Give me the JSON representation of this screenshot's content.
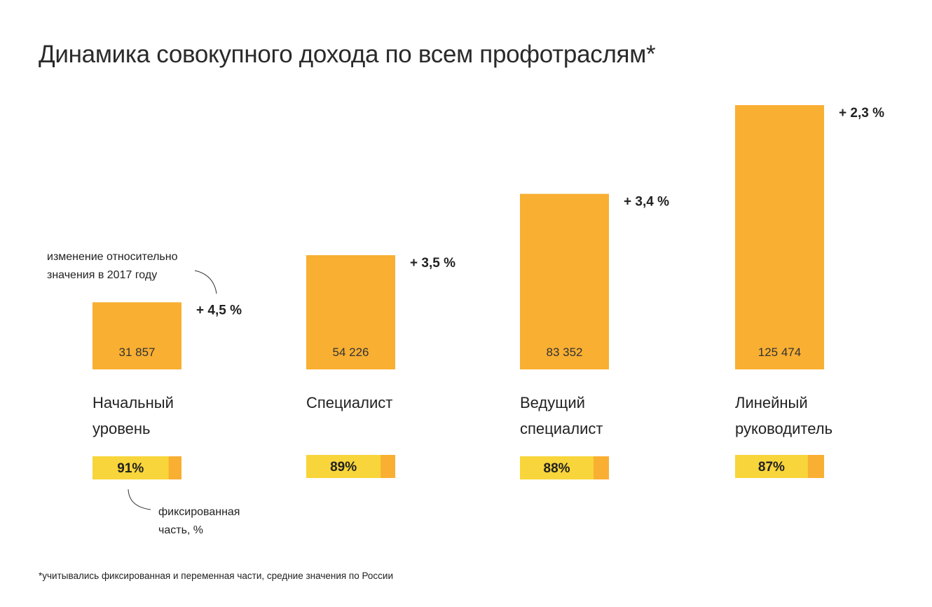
{
  "chart_data": {
    "type": "bar",
    "title": "Динамика совокупного дохода по всем профотраслям*",
    "categories": [
      "Начальный уровень",
      "Специалист",
      "Ведущий специалист",
      "Линейный руководитель"
    ],
    "category_lines": [
      [
        "Начальный",
        "уровень"
      ],
      [
        "Специалист"
      ],
      [
        "Ведущий",
        "специалист"
      ],
      [
        "Линейный",
        "руководитель"
      ]
    ],
    "values": [
      31857,
      54226,
      83352,
      125474
    ],
    "value_labels": [
      "31 857",
      "54 226",
      "83 352",
      "125 474"
    ],
    "change_labels": [
      "+ 4,5 %",
      "+ 3,5 %",
      "+ 3,4 %",
      "+ 2,3 %"
    ],
    "fixed_share_percent": [
      91,
      89,
      88,
      87
    ],
    "fixed_share_labels": [
      "91%",
      "89%",
      "88%",
      "87%"
    ],
    "annotations": {
      "change": [
        "изменение относительно",
        "значения в 2017 году"
      ],
      "fixed": [
        "фиксированная",
        "часть, %"
      ]
    },
    "footnote": "*учитывались фиксированная и переменная части, средние значения по России",
    "xlabel": "",
    "ylabel": "",
    "grid": false,
    "colors": {
      "bar": "#F9AF32",
      "fixed": "#F8D53A",
      "variable": "#F9AF32",
      "text": "#222222"
    }
  }
}
